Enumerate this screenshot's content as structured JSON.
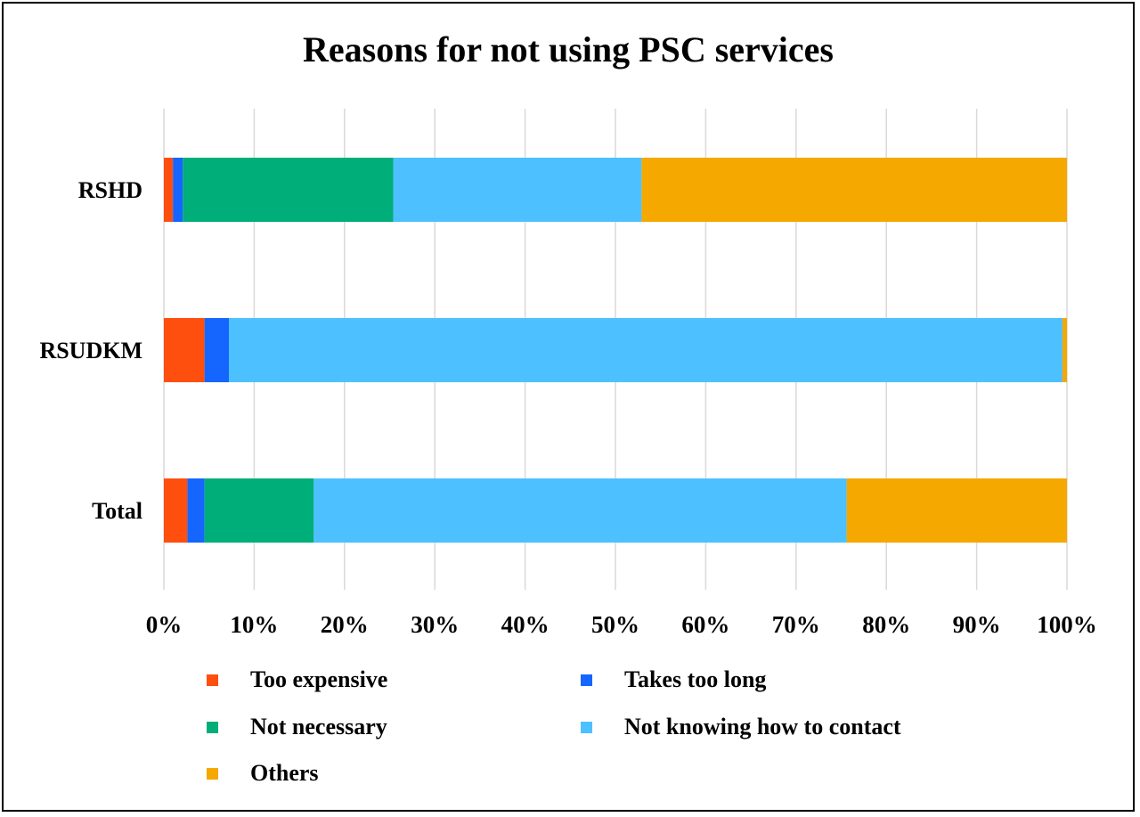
{
  "chart_data": {
    "type": "bar",
    "orientation": "horizontal",
    "stacked": true,
    "title": "Reasons for not using PSC services",
    "categories": [
      "RSHD",
      "RSUDKM",
      "Total"
    ],
    "xlim": [
      0,
      100
    ],
    "x_ticks": [
      "0%",
      "10%",
      "20%",
      "30%",
      "40%",
      "50%",
      "60%",
      "70%",
      "80%",
      "90%",
      "100%"
    ],
    "grid": true,
    "legend_position": "bottom",
    "series": [
      {
        "name": "Too expensive",
        "color": "#FF4F0F",
        "values": [
          1.0,
          4.5,
          2.6
        ]
      },
      {
        "name": "Takes too long",
        "color": "#1466FF",
        "values": [
          1.1,
          2.7,
          1.9
        ]
      },
      {
        "name": "Not necessary",
        "color": "#00AE7A",
        "values": [
          23.3,
          0.0,
          12.1
        ]
      },
      {
        "name": "Not knowing how to contact",
        "color": "#4DC1FF",
        "values": [
          27.5,
          92.3,
          59.0
        ]
      },
      {
        "name": "Others",
        "color": "#F5A800",
        "values": [
          47.1,
          0.5,
          24.4
        ]
      }
    ]
  }
}
